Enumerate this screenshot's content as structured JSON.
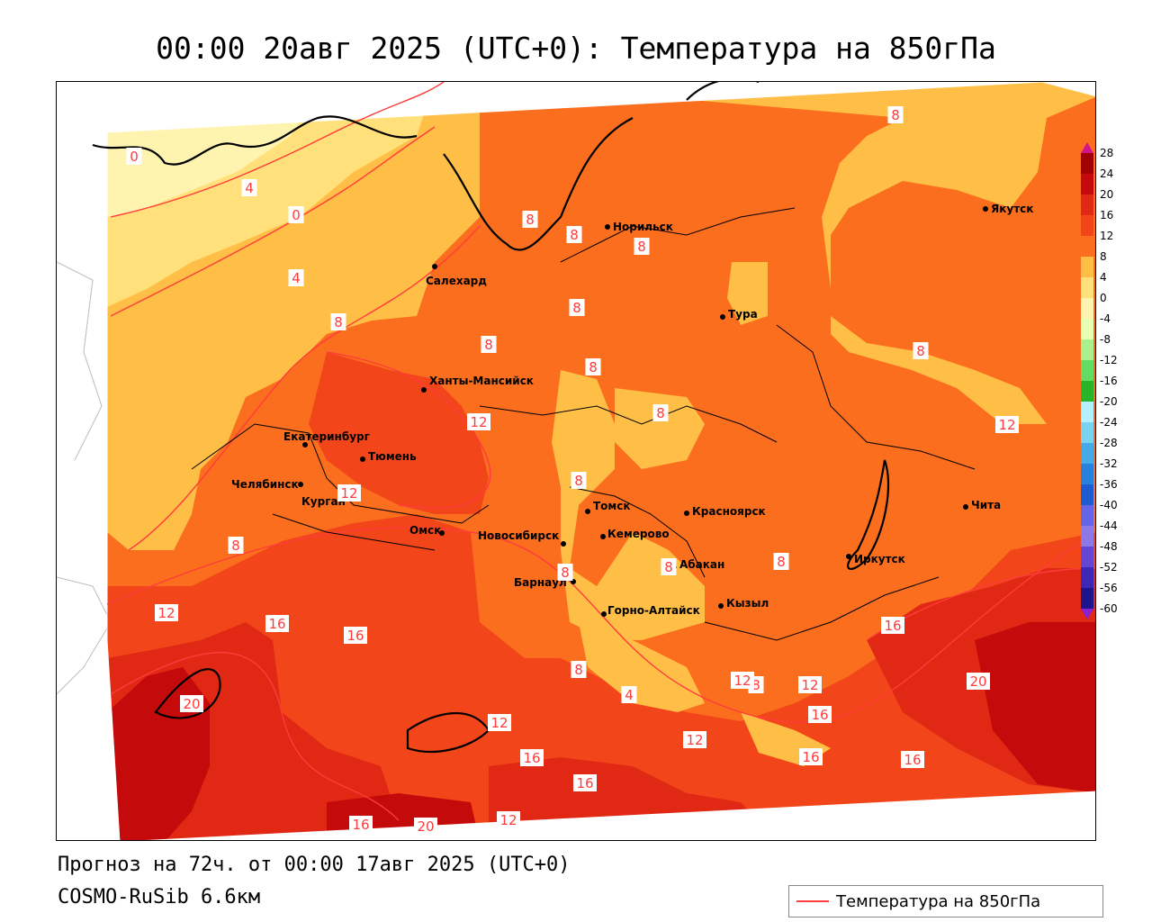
{
  "title": "00:00 20авг 2025 (UTC+0): Температура на 850гПа",
  "footer": {
    "forecast": "Прогноз на 72ч. от 00:00 17авг 2025 (UTC+0)",
    "model": "COSMO-RuSib 6.6км"
  },
  "legend": {
    "label": "Температура на 850гПа",
    "line_color": "#ff3c3c"
  },
  "colorbar": {
    "ticks": [
      "28",
      "24",
      "20",
      "16",
      "12",
      "8",
      "4",
      "0",
      "-4",
      "-8",
      "-12",
      "-16",
      "-20",
      "-24",
      "-28",
      "-32",
      "-36",
      "-40",
      "-44",
      "-48",
      "-52",
      "-56",
      "-60"
    ]
  },
  "cities": [
    {
      "name": "Норильск"
    },
    {
      "name": "Якутск"
    },
    {
      "name": "Салехард"
    },
    {
      "name": "Тура"
    },
    {
      "name": "Ханты-Мансийск"
    },
    {
      "name": "Екатеринбург"
    },
    {
      "name": "Тюмень"
    },
    {
      "name": "Челябинск"
    },
    {
      "name": "Курган"
    },
    {
      "name": "Омск"
    },
    {
      "name": "Новосибирск"
    },
    {
      "name": "Томск"
    },
    {
      "name": "Кемерово"
    },
    {
      "name": "Красноярск"
    },
    {
      "name": "Барнаул"
    },
    {
      "name": "Абакан"
    },
    {
      "name": "Горно-Алтайск"
    },
    {
      "name": "Кызыл"
    },
    {
      "name": "Иркутск"
    },
    {
      "name": "Чита"
    }
  ],
  "isotherm_labels": [
    "0",
    "4",
    "0",
    "4",
    "8",
    "8",
    "8",
    "8",
    "8",
    "8",
    "8",
    "8",
    "12",
    "12",
    "8",
    "8",
    "8",
    "8",
    "8",
    "8",
    "8",
    "12",
    "16",
    "16",
    "20",
    "12",
    "12",
    "16",
    "16",
    "12",
    "20",
    "16",
    "12",
    "16",
    "16",
    "16",
    "12",
    "8",
    "16",
    "20",
    "12",
    "4",
    "8"
  ],
  "colors": {
    "t_minus4_0": "#fff3b0",
    "t_0_4": "#ffe07a",
    "t_4_8": "#ffbe46",
    "t_8_12": "#fb6e1e",
    "t_12_16": "#f2461a",
    "t_16_20": "#e02814",
    "t_20_24": "#c40a0a",
    "t_24_28": "#a00000",
    "isotherm": "#ff3c3c"
  }
}
